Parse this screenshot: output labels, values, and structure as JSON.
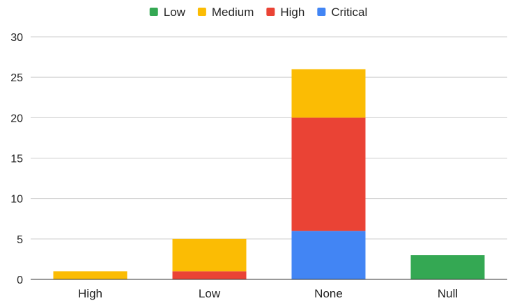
{
  "chart_data": {
    "type": "bar",
    "stacked": true,
    "categories": [
      "High",
      "Low",
      "None",
      "Null"
    ],
    "series": [
      {
        "name": "Low",
        "color": "#34a853",
        "values": [
          0,
          0,
          0,
          3
        ]
      },
      {
        "name": "Medium",
        "color": "#fbbc04",
        "values": [
          1,
          4,
          6,
          0
        ]
      },
      {
        "name": "High",
        "color": "#ea4335",
        "values": [
          0,
          1,
          14,
          0
        ]
      },
      {
        "name": "Critical",
        "color": "#4285f4",
        "values": [
          0,
          0,
          6,
          0
        ]
      }
    ],
    "stack_order": [
      "Critical",
      "High",
      "Medium",
      "Low"
    ],
    "ylim": [
      0,
      30
    ],
    "yticks": [
      0,
      5,
      10,
      15,
      20,
      25,
      30
    ],
    "grid": true,
    "legend_position": "top-center"
  }
}
